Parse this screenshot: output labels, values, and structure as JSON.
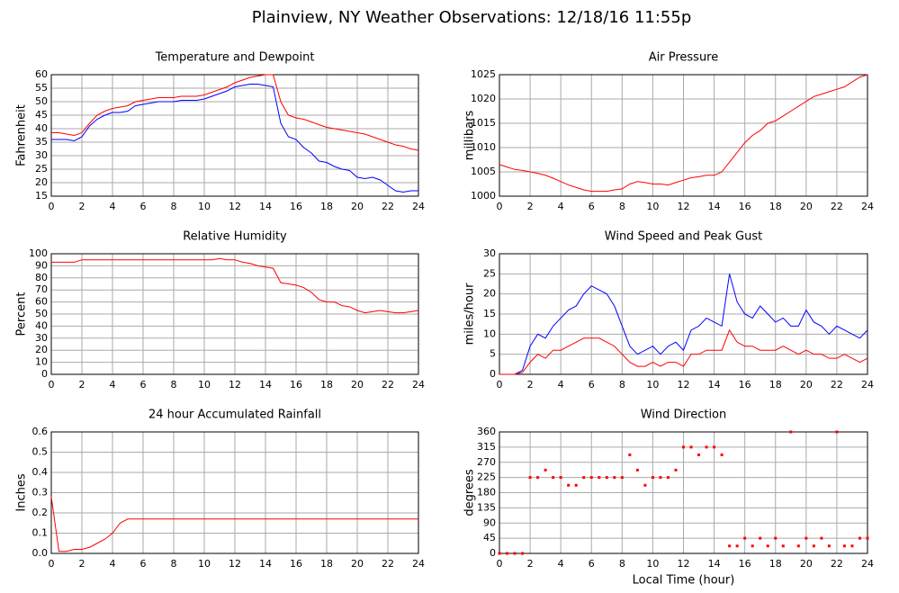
{
  "title": "Plainview, NY Weather Observations: 12/18/16 11:55p",
  "chart_data": [
    {
      "type": "line",
      "title": "Temperature and Dewpoint",
      "ylabel": "Fahrenheit",
      "x": [
        0,
        0.5,
        1,
        1.5,
        2,
        2.5,
        3,
        3.5,
        4,
        4.5,
        5,
        5.5,
        6,
        6.5,
        7,
        7.5,
        8,
        8.5,
        9,
        9.5,
        10,
        10.5,
        11,
        11.5,
        12,
        12.5,
        13,
        13.5,
        14,
        14.5,
        15,
        15.5,
        16,
        16.5,
        17,
        17.5,
        18,
        18.5,
        19,
        19.5,
        20,
        20.5,
        21,
        21.5,
        22,
        22.5,
        23,
        23.5,
        24
      ],
      "series": [
        {
          "color": "#ff0000",
          "values": [
            38.5,
            38.5,
            38,
            37.5,
            38.5,
            42,
            45,
            46.5,
            47.5,
            48,
            48.5,
            50,
            50.5,
            51,
            51.5,
            51.5,
            51.5,
            52,
            52,
            52,
            52.5,
            53.5,
            54.5,
            55.5,
            57,
            58,
            59,
            59.5,
            60,
            60,
            50,
            45,
            44,
            43.5,
            42.5,
            41.5,
            40.5,
            40,
            39.5,
            39,
            38.5,
            38,
            37,
            36,
            35,
            34,
            33.5,
            32.5,
            32
          ]
        },
        {
          "color": "#0000ff",
          "values": [
            36,
            36,
            36,
            35.5,
            37,
            41,
            43.5,
            45,
            46,
            46,
            46.5,
            48.5,
            49,
            49.5,
            50,
            50,
            50,
            50.5,
            50.5,
            50.5,
            51,
            52,
            53,
            54,
            55.5,
            56,
            56.5,
            56.5,
            56,
            55.5,
            42,
            37,
            36,
            33,
            31,
            28,
            27.5,
            26,
            25,
            24.5,
            22,
            21.5,
            22,
            21,
            19,
            17,
            16.5,
            17,
            17
          ]
        }
      ],
      "xlim": [
        0,
        24
      ],
      "xticks": [
        0,
        2,
        4,
        6,
        8,
        10,
        12,
        14,
        16,
        18,
        20,
        22,
        24
      ],
      "ylim": [
        15,
        60
      ],
      "yticks": [
        15,
        20,
        25,
        30,
        35,
        40,
        45,
        50,
        55,
        60
      ],
      "grid": true
    },
    {
      "type": "line",
      "title": "Air Pressure",
      "ylabel": "millibars",
      "x": [
        0,
        0.5,
        1,
        1.5,
        2,
        2.5,
        3,
        3.5,
        4,
        4.5,
        5,
        5.5,
        6,
        6.5,
        7,
        7.5,
        8,
        8.5,
        9,
        9.5,
        10,
        10.5,
        11,
        11.5,
        12,
        12.5,
        13,
        13.5,
        14,
        14.5,
        15,
        15.5,
        16,
        16.5,
        17,
        17.5,
        18,
        18.5,
        19,
        19.5,
        20,
        20.5,
        21,
        21.5,
        22,
        22.5,
        23,
        23.5,
        24
      ],
      "series": [
        {
          "color": "#ff0000",
          "values": [
            1006.5,
            1006,
            1005.5,
            1005.3,
            1005,
            1004.7,
            1004.3,
            1003.7,
            1003,
            1002.3,
            1001.8,
            1001.3,
            1001,
            1001,
            1001,
            1001.3,
            1001.5,
            1002.5,
            1003,
            1002.8,
            1002.5,
            1002.5,
            1002.3,
            1002.8,
            1003.3,
            1003.8,
            1004,
            1004.3,
            1004.3,
            1005,
            1007,
            1009,
            1011,
            1012.5,
            1013.5,
            1015,
            1015.5,
            1016.5,
            1017.5,
            1018.5,
            1019.5,
            1020.5,
            1021,
            1021.5,
            1022,
            1022.5,
            1023.5,
            1024.5,
            1025
          ]
        }
      ],
      "xlim": [
        0,
        24
      ],
      "xticks": [
        0,
        2,
        4,
        6,
        8,
        10,
        12,
        14,
        16,
        18,
        20,
        22,
        24
      ],
      "ylim": [
        1000,
        1025
      ],
      "yticks": [
        1000,
        1005,
        1010,
        1015,
        1020,
        1025
      ],
      "grid": true
    },
    {
      "type": "line",
      "title": "Relative Humidity",
      "ylabel": "Percent",
      "x": [
        0,
        0.5,
        1,
        1.5,
        2,
        2.5,
        3,
        3.5,
        4,
        4.5,
        5,
        5.5,
        6,
        6.5,
        7,
        7.5,
        8,
        8.5,
        9,
        9.5,
        10,
        10.5,
        11,
        11.5,
        12,
        12.5,
        13,
        13.5,
        14,
        14.5,
        15,
        15.5,
        16,
        16.5,
        17,
        17.5,
        18,
        18.5,
        19,
        19.5,
        20,
        20.5,
        21,
        21.5,
        22,
        22.5,
        23,
        23.5,
        24
      ],
      "series": [
        {
          "color": "#ff0000",
          "values": [
            93,
            93,
            93,
            93,
            95,
            95,
            95,
            95,
            95,
            95,
            95,
            95,
            95,
            95,
            95,
            95,
            95,
            95,
            95,
            95,
            95,
            95,
            96,
            95,
            95,
            93,
            92,
            90,
            89,
            88,
            76,
            75,
            74,
            72,
            68,
            62,
            60,
            60,
            57,
            56,
            53,
            51,
            52,
            53,
            52,
            51,
            51,
            52,
            53
          ]
        }
      ],
      "xlim": [
        0,
        24
      ],
      "xticks": [
        0,
        2,
        4,
        6,
        8,
        10,
        12,
        14,
        16,
        18,
        20,
        22,
        24
      ],
      "ylim": [
        0,
        100
      ],
      "yticks": [
        0,
        10,
        20,
        30,
        40,
        50,
        60,
        70,
        80,
        90,
        100
      ],
      "grid": true
    },
    {
      "type": "line",
      "title": "Wind Speed and Peak Gust",
      "ylabel": "miles/hour",
      "x": [
        0,
        0.5,
        1,
        1.5,
        2,
        2.5,
        3,
        3.5,
        4,
        4.5,
        5,
        5.5,
        6,
        6.5,
        7,
        7.5,
        8,
        8.5,
        9,
        9.5,
        10,
        10.5,
        11,
        11.5,
        12,
        12.5,
        13,
        13.5,
        14,
        14.5,
        15,
        15.5,
        16,
        16.5,
        17,
        17.5,
        18,
        18.5,
        19,
        19.5,
        20,
        20.5,
        21,
        21.5,
        22,
        22.5,
        23,
        23.5,
        24
      ],
      "series": [
        {
          "color": "#0000ff",
          "values": [
            0,
            0,
            0,
            1,
            7,
            10,
            9,
            12,
            14,
            16,
            17,
            20,
            22,
            21,
            20,
            17,
            12,
            7,
            5,
            6,
            7,
            5,
            7,
            8,
            6,
            11,
            12,
            14,
            13,
            12,
            25,
            18,
            15,
            14,
            17,
            15,
            13,
            14,
            12,
            12,
            16,
            13,
            12,
            10,
            12,
            11,
            10,
            9,
            11
          ]
        },
        {
          "color": "#ff0000",
          "values": [
            0,
            0,
            0,
            0.5,
            3,
            5,
            4,
            6,
            6,
            7,
            8,
            9,
            9,
            9,
            8,
            7,
            5,
            3,
            2,
            2,
            3,
            2,
            3,
            3,
            2,
            5,
            5,
            6,
            6,
            6,
            11,
            8,
            7,
            7,
            6,
            6,
            6,
            7,
            6,
            5,
            6,
            5,
            5,
            4,
            4,
            5,
            4,
            3,
            4
          ]
        }
      ],
      "xlim": [
        0,
        24
      ],
      "xticks": [
        0,
        2,
        4,
        6,
        8,
        10,
        12,
        14,
        16,
        18,
        20,
        22,
        24
      ],
      "ylim": [
        0,
        30
      ],
      "yticks": [
        0,
        5,
        10,
        15,
        20,
        25,
        30
      ],
      "grid": true
    },
    {
      "type": "line",
      "title": "24 hour Accumulated Rainfall",
      "ylabel": "Inches",
      "x": [
        0,
        0.5,
        1,
        1.5,
        2,
        2.5,
        3,
        3.5,
        4,
        4.5,
        5,
        5.5,
        6,
        6.5,
        7,
        7.5,
        8,
        8.5,
        9,
        9.5,
        10,
        10.5,
        11,
        11.5,
        12,
        12.5,
        13,
        13.5,
        14,
        14.5,
        15,
        15.5,
        16,
        16.5,
        17,
        17.5,
        18,
        18.5,
        19,
        19.5,
        20,
        20.5,
        21,
        21.5,
        22,
        22.5,
        23,
        23.5,
        24
      ],
      "series": [
        {
          "color": "#ff0000",
          "values": [
            0.28,
            0.01,
            0.01,
            0.02,
            0.02,
            0.03,
            0.05,
            0.07,
            0.1,
            0.15,
            0.17,
            0.17,
            0.17,
            0.17,
            0.17,
            0.17,
            0.17,
            0.17,
            0.17,
            0.17,
            0.17,
            0.17,
            0.17,
            0.17,
            0.17,
            0.17,
            0.17,
            0.17,
            0.17,
            0.17,
            0.17,
            0.17,
            0.17,
            0.17,
            0.17,
            0.17,
            0.17,
            0.17,
            0.17,
            0.17,
            0.17,
            0.17,
            0.17,
            0.17,
            0.17,
            0.17,
            0.17,
            0.17,
            0.17
          ]
        }
      ],
      "xlim": [
        0,
        24
      ],
      "xticks": [
        0,
        2,
        4,
        6,
        8,
        10,
        12,
        14,
        16,
        18,
        20,
        22,
        24
      ],
      "ylim": [
        0,
        0.6
      ],
      "yticks": [
        {
          "value": 0,
          "label": "0.0"
        },
        0.1,
        0.2,
        0.3,
        0.4,
        0.5,
        0.6
      ],
      "grid": true
    },
    {
      "type": "scatter",
      "title": "Wind Direction",
      "ylabel": "degrees",
      "xlabel": "Local Time (hour)",
      "x": [
        0,
        0.5,
        1,
        1.5,
        2,
        2.5,
        3,
        3.5,
        4,
        4.5,
        5,
        5.5,
        6,
        6.5,
        7,
        7.5,
        8,
        8.5,
        9,
        9.5,
        10,
        10.5,
        11,
        11.5,
        12,
        12.5,
        13,
        13.5,
        14,
        14.5,
        15,
        15.5,
        16,
        16.5,
        17,
        17.5,
        18,
        18.5,
        19,
        19.5,
        20,
        20.5,
        21,
        21.5,
        22,
        22.5,
        23,
        23.5,
        24
      ],
      "series": [
        {
          "color": "#ff0000",
          "values": [
            0,
            0,
            0,
            0,
            225,
            225,
            247,
            225,
            225,
            202,
            202,
            225,
            225,
            225,
            225,
            225,
            225,
            292,
            247,
            202,
            225,
            225,
            225,
            247,
            315,
            315,
            292,
            315,
            315,
            292,
            22,
            22,
            45,
            22,
            45,
            22,
            45,
            22,
            360,
            22,
            45,
            22,
            45,
            22,
            360,
            22,
            22,
            45,
            45
          ]
        }
      ],
      "xlim": [
        0,
        24
      ],
      "xticks": [
        0,
        2,
        4,
        6,
        8,
        10,
        12,
        14,
        16,
        18,
        20,
        22,
        24
      ],
      "ylim": [
        0,
        360
      ],
      "yticks": [
        0,
        45,
        90,
        135,
        180,
        225,
        270,
        315,
        360
      ],
      "grid": true
    }
  ]
}
